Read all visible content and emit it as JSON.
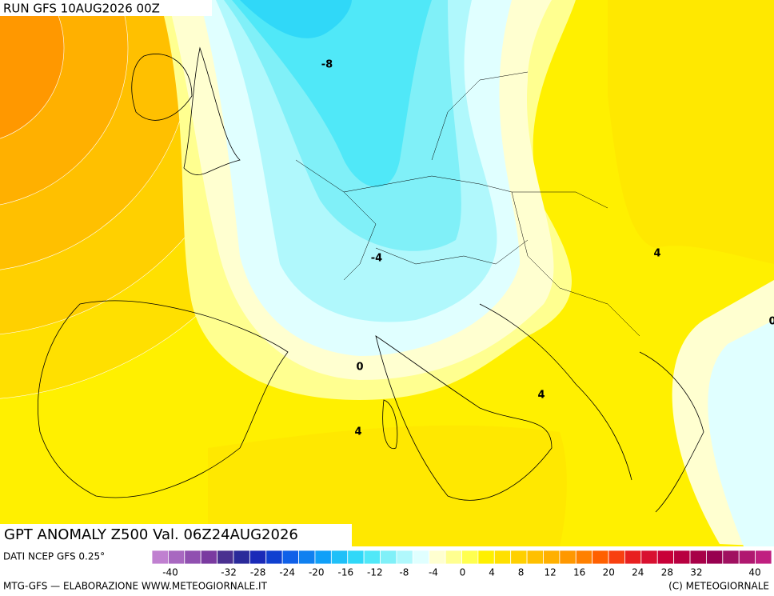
{
  "header": {
    "run": "RUN GFS 10AUG2026 00Z"
  },
  "map": {
    "title": "GPT ANOMALY Z500 Val. 06Z24AUG2026",
    "contour_labels": [
      "-8",
      "-4",
      "0",
      "4",
      "4",
      "4",
      "0"
    ]
  },
  "colorbar": {
    "source": "DATI NCEP GFS 0.25°",
    "colors": [
      "#c080d0",
      "#a868c0",
      "#9050b0",
      "#7a3aa0",
      "#4a3090",
      "#2a2a9a",
      "#1a2ab8",
      "#1040d0",
      "#1060e8",
      "#1080f0",
      "#10a0f8",
      "#20c0f8",
      "#30d8f8",
      "#50e8f8",
      "#80f0f8",
      "#b0f8fc",
      "#e0ffff",
      "#ffffd0",
      "#ffff90",
      "#ffff50",
      "#fff000",
      "#ffe000",
      "#ffd000",
      "#ffc000",
      "#ffb000",
      "#ff9800",
      "#ff8000",
      "#ff6000",
      "#f84010",
      "#e82020",
      "#d81030",
      "#c80038",
      "#b80040",
      "#a80048",
      "#980050",
      "#a01060",
      "#b01870",
      "#c02080"
    ],
    "tick_labels": [
      "-40",
      "-32",
      "-28",
      "-24",
      "-20",
      "-16",
      "-12",
      "-8",
      "-4",
      "0",
      "4",
      "8",
      "12",
      "16",
      "20",
      "24",
      "28",
      "32",
      "40"
    ]
  },
  "footer": {
    "left": "MTG-GFS — ELABORAZIONE WWW.METEOGIORNALE.IT",
    "right": "(C) METEOGIORNALE"
  }
}
